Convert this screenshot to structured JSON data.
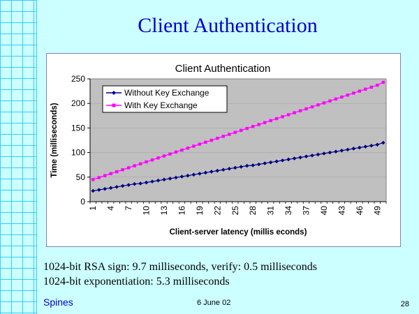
{
  "slide": {
    "title": "Client Authentication",
    "note1": "1024-bit RSA sign: 9.7 milliseconds, verify: 0.5 milliseconds",
    "note2": "1024-bit exponentiation: 5.3 milliseconds",
    "footer_left": "Spines",
    "footer_center": "6 June 02",
    "page_number": "28"
  },
  "colors": {
    "title": "#0000cc",
    "background": "#ccffff",
    "grid": "#33ccff",
    "plot_area": "#c0c0c0",
    "series_without": "#000080",
    "series_with": "#ff00ff"
  },
  "chart_data": {
    "type": "line",
    "title": "Client Authentication",
    "xlabel": "Client-server latency (millis econds)",
    "ylabel": "Time (milliseconds)",
    "x": [
      1,
      2,
      3,
      4,
      5,
      6,
      7,
      8,
      9,
      10,
      11,
      12,
      13,
      14,
      15,
      16,
      17,
      18,
      19,
      20,
      21,
      22,
      23,
      24,
      25,
      26,
      27,
      28,
      29,
      30,
      31,
      32,
      33,
      34,
      35,
      36,
      37,
      38,
      39,
      40,
      41,
      42,
      43,
      44,
      45,
      46,
      47,
      48,
      49,
      50
    ],
    "xticks": [
      "1",
      "4",
      "7",
      "10",
      "13",
      "16",
      "19",
      "22",
      "25",
      "28",
      "31",
      "34",
      "37",
      "40",
      "43",
      "46",
      "49"
    ],
    "ylim": [
      0,
      250
    ],
    "yticks": [
      "0",
      "50",
      "100",
      "150",
      "200",
      "250"
    ],
    "grid": true,
    "legend_position": "top-left",
    "series": [
      {
        "name": "Without Key Exchange",
        "values": [
          22,
          24,
          26,
          28,
          30,
          32,
          34,
          36,
          37,
          39,
          41,
          43,
          45,
          47,
          49,
          51,
          53,
          55,
          57,
          59,
          61,
          63,
          65,
          67,
          69,
          71,
          73,
          74,
          76,
          78,
          80,
          82,
          84,
          86,
          88,
          90,
          92,
          94,
          96,
          98,
          100,
          102,
          104,
          106,
          108,
          110,
          112,
          114,
          116,
          120
        ]
      },
      {
        "name": "With Key Exchange",
        "values": [
          45,
          49,
          53,
          57,
          61,
          65,
          69,
          73,
          77,
          81,
          85,
          89,
          93,
          97,
          101,
          105,
          109,
          113,
          117,
          121,
          125,
          129,
          133,
          137,
          141,
          145,
          149,
          153,
          157,
          161,
          165,
          169,
          173,
          177,
          181,
          185,
          189,
          193,
          197,
          201,
          205,
          209,
          213,
          217,
          221,
          225,
          229,
          233,
          237,
          243
        ]
      }
    ]
  }
}
